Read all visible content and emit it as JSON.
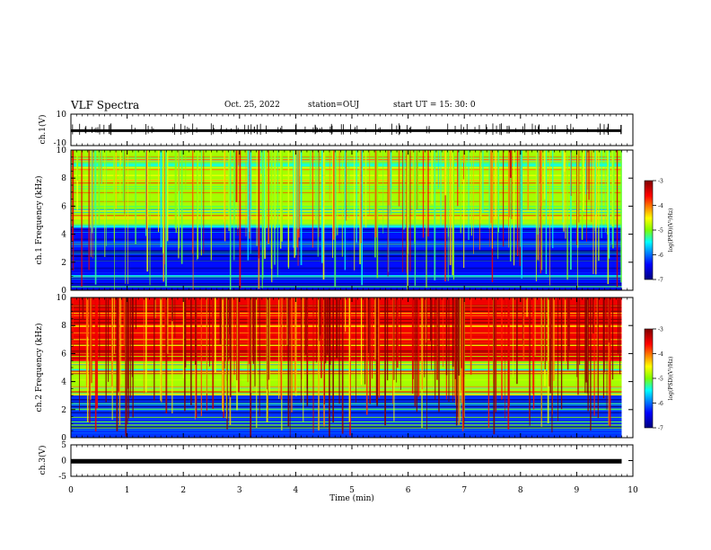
{
  "header": {
    "title": "VLF Spectra",
    "date": "Oct. 25, 2022",
    "station": "station=OUJ",
    "start": "start  UT =   15: 30: 0"
  },
  "chart_data": [
    {
      "type": "line",
      "panel": "waveform-ch1",
      "ylabel": "ch.1(V)",
      "ylim": [
        -10,
        10
      ],
      "yticks": [
        10,
        -10
      ],
      "xlim": [
        0,
        10
      ],
      "series": [
        {
          "values_note": "noisy waveform near -0.5 V with spikes up to about 2 V"
        }
      ],
      "x": [
        0,
        9.8
      ],
      "y": [
        -0.5,
        -0.5
      ],
      "color": "#000000"
    },
    {
      "type": "heatmap",
      "panel": "spectrogram-ch1",
      "ylabel": "ch.1 Frequency (kHz)",
      "ylim": [
        0,
        10
      ],
      "yticks": [
        0,
        2,
        4,
        6,
        8,
        10
      ],
      "xlim": [
        0,
        10
      ],
      "data_xrange": [
        0,
        9.8
      ],
      "colorbar": {
        "label": "log(PSD)(V²/Hz)",
        "range": [
          -7,
          -3
        ],
        "ticks": [
          -3,
          -4,
          -5,
          -6,
          -7
        ]
      },
      "bands_khz": [
        [
          0,
          4.6,
          -6.3
        ],
        [
          4.6,
          10,
          -4.8
        ]
      ]
    },
    {
      "type": "heatmap",
      "panel": "spectrogram-ch2",
      "ylabel": "ch.2 Frequency (kHz)",
      "ylim": [
        0,
        10
      ],
      "yticks": [
        0,
        2,
        4,
        6,
        8,
        10
      ],
      "xlim": [
        0,
        10
      ],
      "data_xrange": [
        0,
        9.8
      ],
      "colorbar": {
        "label": "log(PSD)(V²/Hz)",
        "range": [
          -7,
          -3
        ],
        "ticks": [
          -3,
          -4,
          -5,
          -6,
          -7
        ]
      },
      "bands_khz": [
        [
          0,
          3,
          -6.2
        ],
        [
          3,
          5.5,
          -4.8
        ],
        [
          5.5,
          10,
          -3.6
        ]
      ]
    },
    {
      "type": "line",
      "panel": "waveform-ch3",
      "ylabel": "ch.3(V)",
      "ylim": [
        -5,
        5
      ],
      "yticks": [
        5,
        0,
        -5
      ],
      "xlim": [
        0,
        10
      ],
      "x": [
        0,
        9.8
      ],
      "y": [
        -0.2,
        -0.2
      ],
      "color": "#000000"
    }
  ],
  "xaxis": {
    "label": "Time  (min)",
    "ticks": [
      0,
      1,
      2,
      3,
      4,
      5,
      6,
      7,
      8,
      9,
      10
    ]
  },
  "colormap": [
    "#00007f",
    "#0000ff",
    "#00ffff",
    "#7fff00",
    "#ffff00",
    "#ff0000",
    "#7f0000"
  ]
}
